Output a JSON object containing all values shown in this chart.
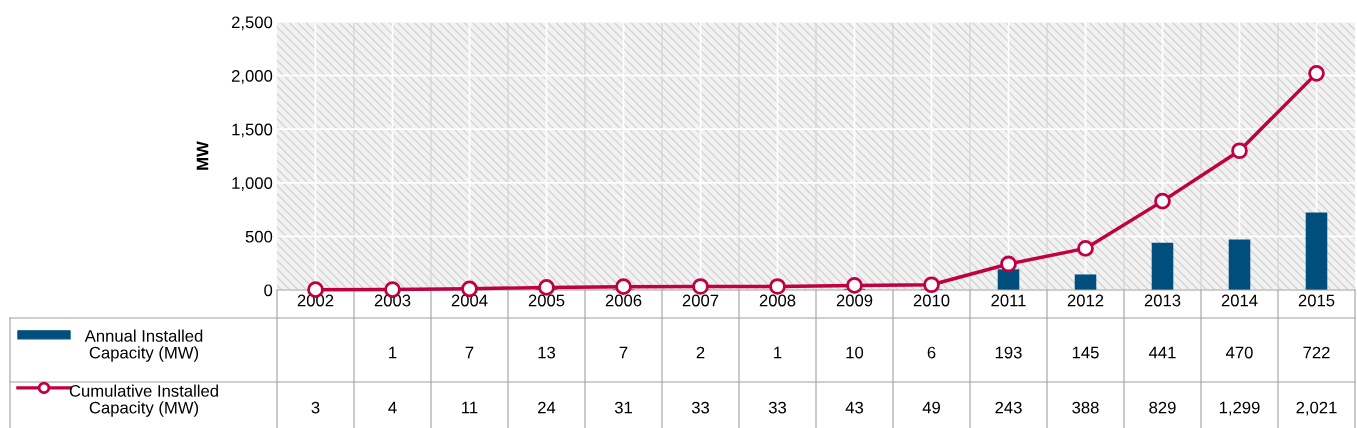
{
  "chart_data": {
    "type": "bar",
    "ylabel": "MW",
    "categories": [
      "2002",
      "2003",
      "2004",
      "2005",
      "2006",
      "2007",
      "2008",
      "2009",
      "2010",
      "2011",
      "2012",
      "2013",
      "2014",
      "2015"
    ],
    "series": [
      {
        "name": "Annual Installed Capacity (MW)",
        "color": "#004e7c",
        "values": [
          null,
          1,
          7,
          13,
          7,
          2,
          1,
          10,
          6,
          193,
          145,
          441,
          470,
          722
        ],
        "value_labels": [
          null,
          "1",
          "7",
          "13",
          "7",
          "2",
          "1",
          "10",
          "6",
          "193",
          "145",
          "441",
          "470",
          "722"
        ]
      },
      {
        "name": "Cumulative Installed Capacity (MW)",
        "type": "line",
        "color": "#c00040",
        "marker": "circle",
        "line_style": "solid",
        "values": [
          3,
          4,
          11,
          24,
          31,
          33,
          33,
          43,
          49,
          243,
          388,
          829,
          1299,
          2021
        ],
        "value_labels": [
          "3",
          "4",
          "11",
          "24",
          "31",
          "33",
          "33",
          "43",
          "49",
          "243",
          "388",
          "829",
          "1,299",
          "2,021"
        ]
      }
    ],
    "ylim": [
      0,
      2500
    ],
    "yticks": [
      {
        "value": 0,
        "label": "0"
      },
      {
        "value": 500,
        "label": "500"
      },
      {
        "value": 1000,
        "label": "1,000"
      },
      {
        "value": 1500,
        "label": "1,500"
      },
      {
        "value": 2000,
        "label": "2,000"
      },
      {
        "value": 2500,
        "label": "2,500"
      }
    ],
    "grid": true,
    "legend": "bottom left"
  }
}
